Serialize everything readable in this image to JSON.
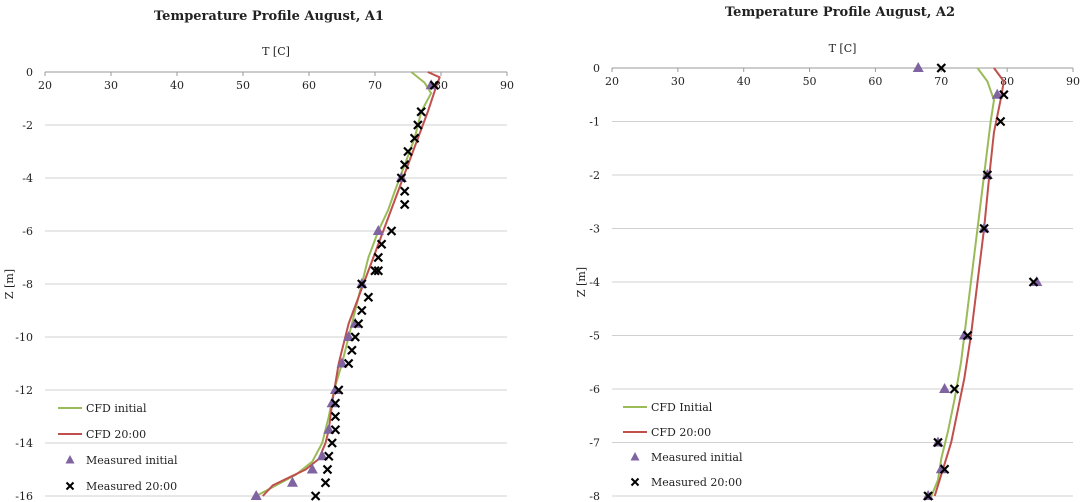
{
  "colors": {
    "cfd_initial": "#9bbb59",
    "cfd_2000": "#c0504d",
    "measured_initial": "#8064a2",
    "measured_2000": "#000000"
  },
  "chart_data": [
    {
      "type": "line",
      "title": "Temperature Profile August,  A1",
      "xlabel": "T [C]",
      "ylabel": "Z [m]",
      "xlim": [
        20,
        90
      ],
      "ylim": [
        -16,
        0
      ],
      "x_ticks": [
        20,
        30,
        40,
        50,
        60,
        70,
        80,
        90
      ],
      "y_ticks": [
        0,
        -2,
        -4,
        -6,
        -8,
        -10,
        -12,
        -14,
        -16
      ],
      "grid": true,
      "legend": "bottom-left",
      "series": [
        {
          "name": "CFD initial",
          "kind": "line",
          "color_key": "cfd_initial",
          "x": [
            75.5,
            77.5,
            78.5,
            77,
            76,
            74.5,
            73,
            72,
            70.5,
            69,
            67.5,
            66,
            65,
            63.8,
            63,
            62,
            60.5,
            58,
            55,
            52
          ],
          "y": [
            0,
            -0.4,
            -0.8,
            -1.5,
            -2.5,
            -3.5,
            -4.5,
            -5.2,
            -6,
            -7,
            -8.5,
            -10,
            -11,
            -12,
            -13,
            -14,
            -14.7,
            -15.2,
            -15.6,
            -16
          ]
        },
        {
          "name": "CFD 20:00",
          "kind": "line",
          "color_key": "cfd_2000",
          "x": [
            78,
            79.8,
            79.2,
            78,
            76.5,
            75,
            73.5,
            72,
            70.5,
            69,
            67.5,
            66,
            64.5,
            63.5,
            63,
            62.5,
            61.5,
            59.5,
            57,
            54.5,
            53
          ],
          "y": [
            0,
            -0.2,
            -0.6,
            -1.5,
            -2.5,
            -3.5,
            -4.5,
            -5.5,
            -6.5,
            -7.5,
            -8.5,
            -9.5,
            -11,
            -12.5,
            -13.5,
            -14,
            -14.6,
            -15,
            -15.3,
            -15.6,
            -16
          ]
        },
        {
          "name": "Measured initial",
          "kind": "marker-triangle",
          "color_key": "measured_initial",
          "x": [
            78.5,
            74,
            70.5,
            68,
            67,
            66,
            65,
            64,
            63.5,
            63,
            62,
            60.5,
            57.5,
            52
          ],
          "y": [
            -0.5,
            -4,
            -6,
            -8,
            -9.5,
            -10,
            -11,
            -12,
            -12.5,
            -13.5,
            -14.5,
            -15,
            -15.5,
            -16
          ]
        },
        {
          "name": "Measured 20:00",
          "kind": "marker-x",
          "color_key": "measured_2000",
          "x": [
            79,
            77,
            76.5,
            76,
            75,
            74.5,
            74,
            74.5,
            74.5,
            72.5,
            71,
            70.5,
            70,
            70.5,
            68,
            69,
            68,
            67.5,
            67,
            66.5,
            66,
            64.5,
            64,
            64,
            64,
            63.5,
            63,
            62.8,
            62.5,
            61
          ],
          "y": [
            -0.5,
            -1.5,
            -2,
            -2.5,
            -3,
            -3.5,
            -4,
            -4.5,
            -5,
            -6,
            -6.5,
            -7,
            -7.5,
            -7.5,
            -8,
            -8.5,
            -9,
            -9.5,
            -10,
            -10.5,
            -11,
            -12,
            -12.5,
            -13,
            -13.5,
            -14,
            -14.5,
            -15,
            -15.5,
            -16
          ]
        }
      ]
    },
    {
      "type": "line",
      "title": "Temperature Profile August,  A2",
      "xlabel": "T [C]",
      "ylabel": "Z [m]",
      "xlim": [
        20,
        90
      ],
      "ylim": [
        -8,
        0
      ],
      "x_ticks": [
        20,
        30,
        40,
        50,
        60,
        70,
        80,
        90
      ],
      "y_ticks": [
        0,
        -1,
        -2,
        -3,
        -4,
        -5,
        -6,
        -7,
        -8
      ],
      "grid": true,
      "legend": "bottom-left",
      "series": [
        {
          "name": "CFD Initial",
          "kind": "line",
          "color_key": "cfd_initial",
          "x": [
            75.5,
            77,
            78,
            77.5,
            77,
            76,
            75,
            74,
            73,
            72,
            71,
            70,
            69.5,
            68.5
          ],
          "y": [
            0,
            -0.25,
            -0.6,
            -1,
            -1.5,
            -2.5,
            -3.5,
            -4.5,
            -5.5,
            -6.2,
            -6.8,
            -7.3,
            -7.7,
            -8
          ]
        },
        {
          "name": "CFD 20:00",
          "kind": "line",
          "color_key": "cfd_2000",
          "x": [
            78,
            79.5,
            79,
            78,
            77.3,
            76.5,
            75.5,
            74.5,
            73.5,
            72.5,
            71.5,
            70.5,
            69.5,
            69
          ],
          "y": [
            0,
            -0.25,
            -0.6,
            -1.2,
            -2,
            -3,
            -4,
            -5,
            -5.8,
            -6.4,
            -7,
            -7.4,
            -7.8,
            -8
          ]
        },
        {
          "name": "Measured initial",
          "kind": "marker-triangle",
          "color_key": "measured_initial",
          "x": [
            66.5,
            78.5,
            77,
            76.5,
            84.5,
            73.5,
            70.5,
            69.5,
            70,
            68
          ],
          "y": [
            0,
            -0.5,
            -2,
            -3,
            -4,
            -5,
            -6,
            -7,
            -7.5,
            -8
          ]
        },
        {
          "name": "Measured 20:00",
          "kind": "marker-x",
          "color_key": "measured_2000",
          "x": [
            70,
            79.5,
            79,
            77,
            76.5,
            84,
            74,
            72,
            69.5,
            70.5,
            68
          ],
          "y": [
            0,
            -0.5,
            -1,
            -2,
            -3,
            -4,
            -5,
            -6,
            -7,
            -7.5,
            -8
          ]
        }
      ]
    }
  ]
}
